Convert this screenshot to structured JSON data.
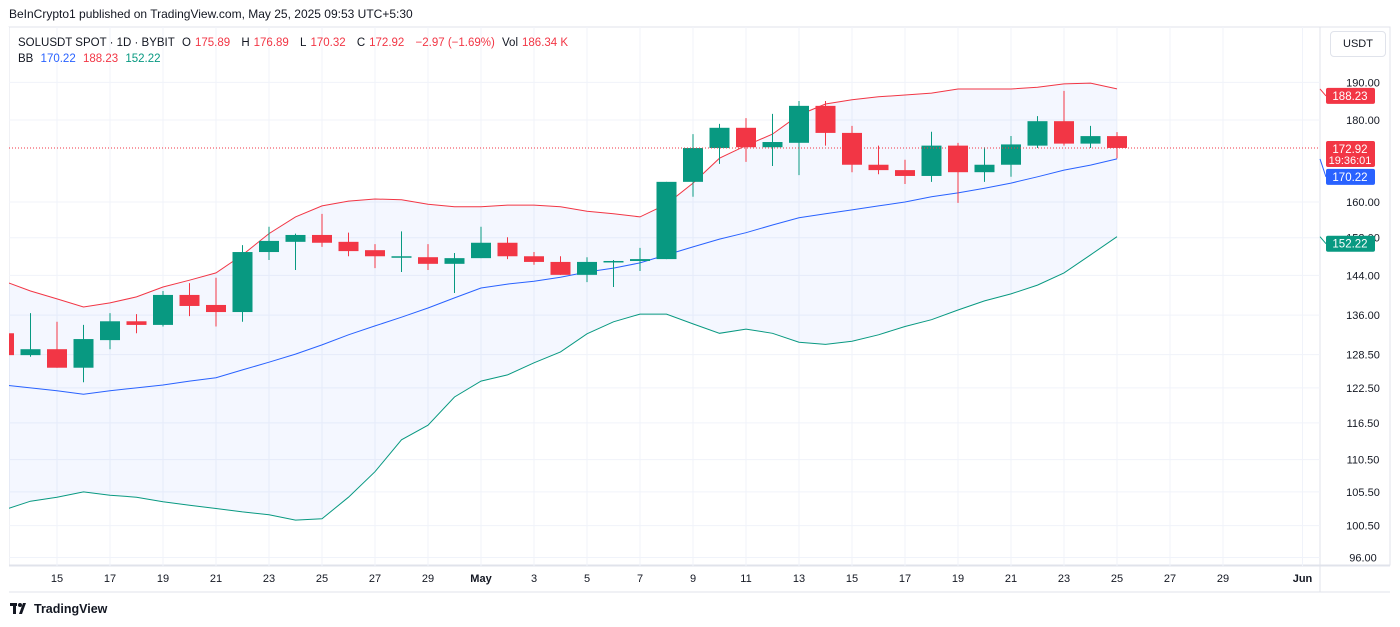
{
  "publisher": "BeInCrypto1 published on TradingView.com, May 25, 2025 09:53 UTC+5:30",
  "legend": {
    "symbol": "SOLUSDT SPOT · 1D · BYBIT",
    "o_label": "O",
    "o": "175.89",
    "h_label": "H",
    "h": "176.89",
    "l_label": "L",
    "l": "170.32",
    "c_label": "C",
    "c": "172.92",
    "change": "−2.97 (−1.69%)",
    "vol_label": "Vol",
    "vol": "186.34 K",
    "bb_label": "BB",
    "bb_basis": "170.22",
    "bb_upper": "188.23",
    "bb_lower": "152.22"
  },
  "currency_button": "USDT",
  "brand": "TradingView",
  "colors": {
    "up": "#089981",
    "down": "#f23645",
    "basis": "#2962ff",
    "upper": "#f23645",
    "lower": "#089981",
    "band_fill": "#2962ff"
  },
  "price_labels": {
    "upper": "188.23",
    "last": "172.92",
    "countdown": "19:36:01",
    "basis": "170.22",
    "lower": "152.22"
  },
  "chart_data": {
    "type": "candlestick",
    "scale": "log",
    "grid": true,
    "ylim": [
      94,
      196
    ],
    "y_ticks": [
      "96.00",
      "100.50",
      "105.50",
      "110.50",
      "116.50",
      "122.50",
      "128.50",
      "136.00",
      "144.00",
      "152.00",
      "160.00",
      "180.00",
      "190.00"
    ],
    "x_ticks": [
      {
        "date": "2025-04-15",
        "label": "15"
      },
      {
        "date": "2025-04-17",
        "label": "17"
      },
      {
        "date": "2025-04-19",
        "label": "19"
      },
      {
        "date": "2025-04-21",
        "label": "21"
      },
      {
        "date": "2025-04-23",
        "label": "23"
      },
      {
        "date": "2025-04-25",
        "label": "25"
      },
      {
        "date": "2025-04-27",
        "label": "27"
      },
      {
        "date": "2025-04-29",
        "label": "29"
      },
      {
        "date": "2025-05-01",
        "label": "May"
      },
      {
        "date": "2025-05-03",
        "label": "3"
      },
      {
        "date": "2025-05-05",
        "label": "5"
      },
      {
        "date": "2025-05-07",
        "label": "7"
      },
      {
        "date": "2025-05-09",
        "label": "9"
      },
      {
        "date": "2025-05-11",
        "label": "11"
      },
      {
        "date": "2025-05-13",
        "label": "13"
      },
      {
        "date": "2025-05-15",
        "label": "15"
      },
      {
        "date": "2025-05-17",
        "label": "17"
      },
      {
        "date": "2025-05-19",
        "label": "19"
      },
      {
        "date": "2025-05-21",
        "label": "21"
      },
      {
        "date": "2025-05-23",
        "label": "23"
      },
      {
        "date": "2025-05-25",
        "label": "25"
      },
      {
        "date": "2025-05-27",
        "label": "27"
      },
      {
        "date": "2025-05-29",
        "label": "29"
      },
      {
        "date": "2025-06-01",
        "label": "Jun"
      }
    ],
    "last_price": 172.92,
    "candles": [
      {
        "date": "2025-04-13",
        "o": 132.5,
        "h": 132.5,
        "l": 128.4,
        "c": 128.4
      },
      {
        "date": "2025-04-14",
        "o": 128.4,
        "h": 136.4,
        "l": 128.1,
        "c": 129.5
      },
      {
        "date": "2025-04-15",
        "o": 129.5,
        "h": 134.7,
        "l": 126.1,
        "c": 126.1
      },
      {
        "date": "2025-04-16",
        "o": 126.1,
        "h": 134.1,
        "l": 123.5,
        "c": 131.4
      },
      {
        "date": "2025-04-17",
        "o": 131.2,
        "h": 136.4,
        "l": 129.5,
        "c": 134.8
      },
      {
        "date": "2025-04-18",
        "o": 134.8,
        "h": 136.2,
        "l": 132.5,
        "c": 134.1
      },
      {
        "date": "2025-04-19",
        "o": 134.1,
        "h": 140.8,
        "l": 133.8,
        "c": 140.0
      },
      {
        "date": "2025-04-20",
        "o": 140.0,
        "h": 142.4,
        "l": 135.8,
        "c": 137.8
      },
      {
        "date": "2025-04-21",
        "o": 138.0,
        "h": 143.5,
        "l": 133.8,
        "c": 136.6
      },
      {
        "date": "2025-04-22",
        "o": 136.6,
        "h": 150.4,
        "l": 134.7,
        "c": 148.9
      },
      {
        "date": "2025-04-23",
        "o": 148.9,
        "h": 154.4,
        "l": 147.2,
        "c": 151.3
      },
      {
        "date": "2025-04-24",
        "o": 151.1,
        "h": 152.9,
        "l": 145.1,
        "c": 152.6
      },
      {
        "date": "2025-04-25",
        "o": 152.6,
        "h": 157.3,
        "l": 150.0,
        "c": 150.9
      },
      {
        "date": "2025-04-26",
        "o": 151.1,
        "h": 153.1,
        "l": 148.0,
        "c": 149.1
      },
      {
        "date": "2025-04-27",
        "o": 149.3,
        "h": 150.6,
        "l": 145.5,
        "c": 148.0
      },
      {
        "date": "2025-04-28",
        "o": 148.0,
        "h": 153.4,
        "l": 144.7,
        "c": 148.0
      },
      {
        "date": "2025-04-29",
        "o": 147.8,
        "h": 150.6,
        "l": 145.1,
        "c": 146.4
      },
      {
        "date": "2025-04-30",
        "o": 146.4,
        "h": 148.7,
        "l": 140.4,
        "c": 147.6
      },
      {
        "date": "2025-05-01",
        "o": 147.6,
        "h": 154.4,
        "l": 147.6,
        "c": 150.9
      },
      {
        "date": "2025-05-02",
        "o": 150.9,
        "h": 152.1,
        "l": 147.4,
        "c": 148.0
      },
      {
        "date": "2025-05-03",
        "o": 148.0,
        "h": 148.9,
        "l": 146.2,
        "c": 146.8
      },
      {
        "date": "2025-05-04",
        "o": 146.8,
        "h": 148.0,
        "l": 144.1,
        "c": 144.1
      },
      {
        "date": "2025-05-05",
        "o": 144.1,
        "h": 147.8,
        "l": 142.6,
        "c": 146.8
      },
      {
        "date": "2025-05-06",
        "o": 147.0,
        "h": 147.2,
        "l": 141.6,
        "c": 147.0
      },
      {
        "date": "2025-05-07",
        "o": 147.0,
        "h": 149.8,
        "l": 144.9,
        "c": 147.4
      },
      {
        "date": "2025-05-08",
        "o": 147.4,
        "h": 164.7,
        "l": 147.4,
        "c": 164.7
      },
      {
        "date": "2025-05-09",
        "o": 164.7,
        "h": 176.4,
        "l": 161.2,
        "c": 172.9
      },
      {
        "date": "2025-05-10",
        "o": 172.9,
        "h": 179.0,
        "l": 169.0,
        "c": 178.0
      },
      {
        "date": "2025-05-11",
        "o": 178.0,
        "h": 180.5,
        "l": 169.5,
        "c": 173.1
      },
      {
        "date": "2025-05-12",
        "o": 173.1,
        "h": 181.6,
        "l": 168.5,
        "c": 174.4
      },
      {
        "date": "2025-05-13",
        "o": 174.2,
        "h": 185.0,
        "l": 166.3,
        "c": 183.7
      },
      {
        "date": "2025-05-14",
        "o": 183.7,
        "h": 185.0,
        "l": 173.5,
        "c": 176.7
      },
      {
        "date": "2025-05-15",
        "o": 176.7,
        "h": 178.5,
        "l": 167.0,
        "c": 168.8
      },
      {
        "date": "2025-05-16",
        "o": 168.8,
        "h": 173.5,
        "l": 166.5,
        "c": 167.5
      },
      {
        "date": "2025-05-17",
        "o": 167.5,
        "h": 170.0,
        "l": 164.2,
        "c": 166.1
      },
      {
        "date": "2025-05-18",
        "o": 166.1,
        "h": 177.0,
        "l": 164.7,
        "c": 173.5
      },
      {
        "date": "2025-05-19",
        "o": 173.5,
        "h": 174.2,
        "l": 159.8,
        "c": 167.0
      },
      {
        "date": "2025-05-20",
        "o": 167.0,
        "h": 173.1,
        "l": 164.7,
        "c": 168.8
      },
      {
        "date": "2025-05-21",
        "o": 168.8,
        "h": 175.9,
        "l": 165.9,
        "c": 173.8
      },
      {
        "date": "2025-05-22",
        "o": 173.5,
        "h": 181.0,
        "l": 172.9,
        "c": 179.7
      },
      {
        "date": "2025-05-23",
        "o": 179.7,
        "h": 187.7,
        "l": 173.5,
        "c": 174.0
      },
      {
        "date": "2025-05-24",
        "o": 174.0,
        "h": 178.5,
        "l": 172.9,
        "c": 175.89
      },
      {
        "date": "2025-05-25",
        "o": 175.89,
        "h": 176.89,
        "l": 170.32,
        "c": 172.92
      }
    ],
    "bollinger": {
      "upper": [
        142.8,
        140.8,
        139.2,
        137.6,
        138.4,
        139.6,
        141.6,
        143.0,
        144.5,
        148.3,
        152.9,
        156.6,
        159.1,
        160.2,
        160.7,
        160.5,
        159.5,
        158.9,
        158.9,
        159.3,
        159.3,
        158.9,
        157.9,
        157.3,
        156.6,
        159.5,
        164.4,
        170.4,
        173.5,
        176.4,
        181.3,
        184.2,
        185.3,
        186.1,
        186.6,
        187.1,
        188.2,
        188.2,
        188.2,
        188.7,
        189.6,
        189.8,
        188.23
      ],
      "basis": [
        123.0,
        122.5,
        122.0,
        121.4,
        122.0,
        122.5,
        123.0,
        123.7,
        124.3,
        125.7,
        127.1,
        128.6,
        130.3,
        132.2,
        133.9,
        135.6,
        137.4,
        139.4,
        141.4,
        142.2,
        142.8,
        143.6,
        144.7,
        145.5,
        146.6,
        148.3,
        150.0,
        151.7,
        153.1,
        154.8,
        156.4,
        157.3,
        158.2,
        159.1,
        160.0,
        161.2,
        162.1,
        163.2,
        164.4,
        165.9,
        167.5,
        168.7,
        170.22
      ],
      "lower": [
        102.8,
        104.1,
        104.7,
        105.5,
        105.0,
        104.7,
        104.0,
        103.5,
        103.0,
        102.5,
        102.1,
        101.3,
        101.5,
        104.7,
        108.6,
        113.7,
        116.1,
        120.9,
        123.7,
        124.8,
        127.0,
        129.0,
        132.4,
        134.7,
        136.2,
        136.2,
        134.3,
        132.5,
        133.3,
        132.5,
        130.8,
        130.4,
        131.0,
        132.2,
        133.8,
        135.1,
        137.0,
        138.8,
        140.2,
        142.0,
        144.5,
        148.3,
        152.22
      ]
    }
  }
}
